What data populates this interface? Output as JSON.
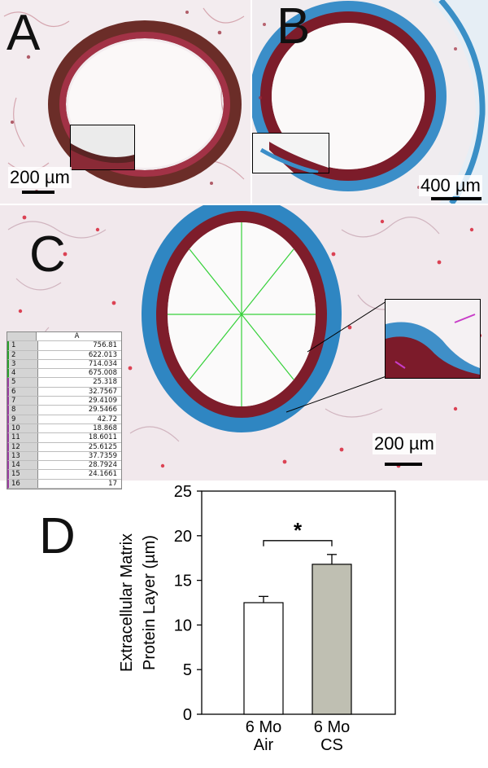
{
  "panels": {
    "a": {
      "letter": "A",
      "scale_label": "200 µm"
    },
    "b": {
      "letter": "B",
      "scale_label": "400 µm"
    },
    "c": {
      "letter": "C",
      "scale_label": "200 µm",
      "table_header": "A",
      "table_rows": [
        {
          "idx": "1",
          "val": "756.81"
        },
        {
          "idx": "2",
          "val": "622.013"
        },
        {
          "idx": "3",
          "val": "714.034"
        },
        {
          "idx": "4",
          "val": "675.008"
        },
        {
          "idx": "5",
          "val": "25.318"
        },
        {
          "idx": "6",
          "val": "32.7567"
        },
        {
          "idx": "7",
          "val": "29.4109"
        },
        {
          "idx": "8",
          "val": "29.5466"
        },
        {
          "idx": "9",
          "val": "42.72"
        },
        {
          "idx": "10",
          "val": "18.868"
        },
        {
          "idx": "11",
          "val": "18.6011"
        },
        {
          "idx": "12",
          "val": "25.6125"
        },
        {
          "idx": "13",
          "val": "37.7359"
        },
        {
          "idx": "14",
          "val": "28.7924"
        },
        {
          "idx": "15",
          "val": "24.1661"
        },
        {
          "idx": "16",
          "val": "17"
        }
      ]
    },
    "d": {
      "letter": "D"
    }
  },
  "colors": {
    "tissue_background": "#f1e8ec",
    "epithelium": "#8c1b2a",
    "collagen_stain": "#2f86c2",
    "nuclei": "#d8263a",
    "measure_lines": "#36d13a",
    "air_bar": "#ffffff",
    "cs_bar": "#bfbfb2"
  },
  "chart_data": {
    "type": "bar",
    "categories": [
      "6 Mo\nAir",
      "6 Mo\nCS"
    ],
    "category_lines": [
      [
        "6 Mo",
        "Air"
      ],
      [
        "6 Mo",
        "CS"
      ]
    ],
    "values": [
      12.5,
      16.8
    ],
    "errors": [
      0.7,
      1.1
    ],
    "bar_colors": [
      "#ffffff",
      "#bfbfb2"
    ],
    "ylabel_lines": [
      "Extracellular Matrix",
      "Protein Layer (µm)"
    ],
    "ylim": [
      0,
      25
    ],
    "yticks": [
      0,
      5,
      10,
      15,
      20,
      25
    ],
    "significance": {
      "label": "*",
      "between": [
        0,
        1
      ]
    },
    "grid": false
  }
}
